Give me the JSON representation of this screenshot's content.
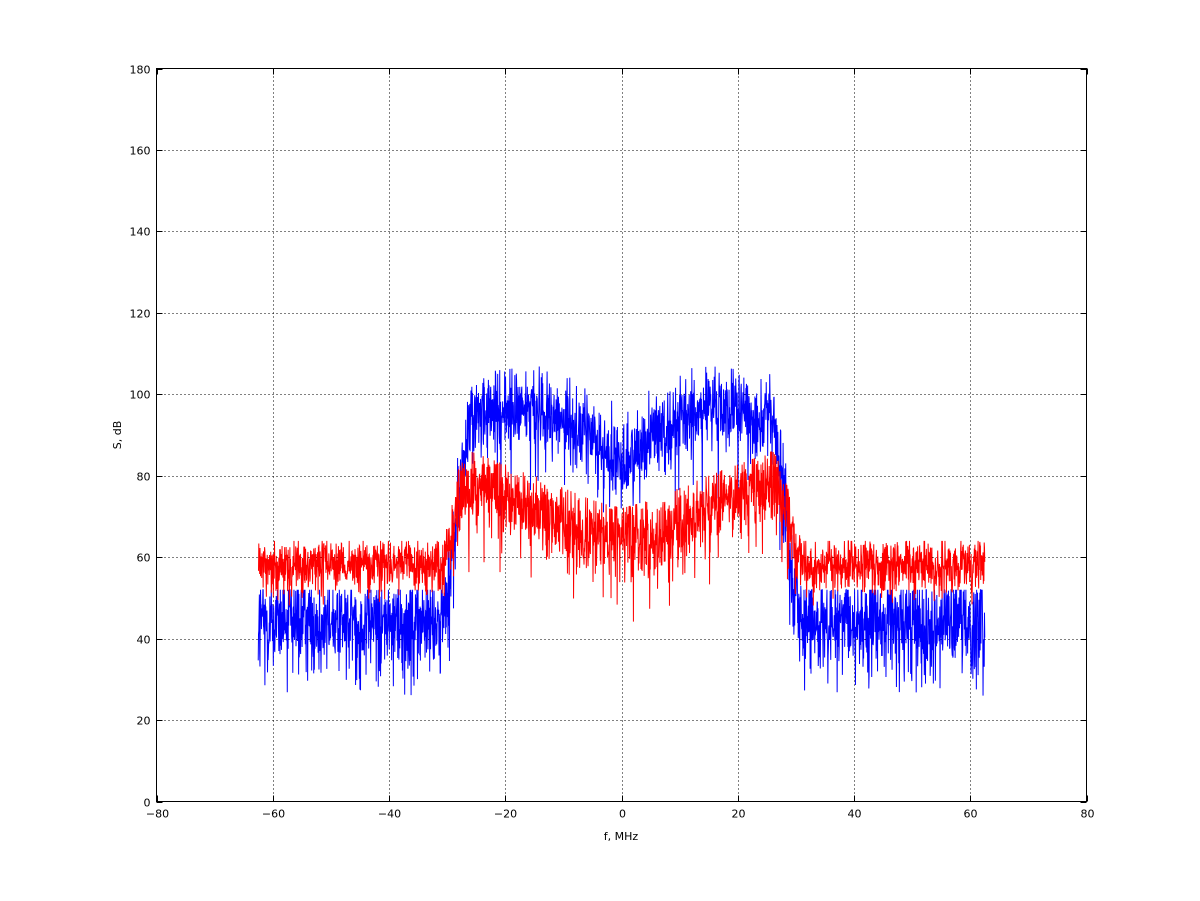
{
  "chart_data": {
    "type": "line",
    "title": "",
    "xlabel": "f, MHz",
    "ylabel": "S, dB",
    "xlim": [
      -80,
      80
    ],
    "ylim": [
      0,
      180
    ],
    "xticks": [
      -80,
      -60,
      -40,
      -20,
      0,
      20,
      40,
      60,
      80
    ],
    "yticks": [
      0,
      20,
      40,
      60,
      80,
      100,
      120,
      140,
      160,
      180
    ],
    "grid": true,
    "grid_style": "dotted",
    "sampling": {
      "x_start": -62.5,
      "x_step": 0.05,
      "count": 2501
    },
    "series": [
      {
        "color": "#0000ff",
        "envelope": {
          "x": [
            -62.5,
            -60,
            -31,
            -29.5,
            -28,
            -26,
            -15,
            -5,
            0,
            5,
            15,
            26,
            28,
            29.5,
            31,
            60,
            62.5
          ],
          "mean": [
            44,
            44,
            44,
            55,
            75,
            94,
            97,
            90,
            82,
            90,
            97,
            94,
            75,
            55,
            44,
            44,
            44
          ],
          "noise": [
            7,
            6,
            6,
            6,
            6,
            5,
            5,
            5,
            5,
            5,
            5,
            5,
            6,
            6,
            6,
            6,
            7
          ],
          "min": [
            26,
            26,
            26,
            35,
            55,
            70,
            70,
            70,
            72,
            70,
            70,
            70,
            55,
            35,
            26,
            26,
            26
          ],
          "max": [
            52,
            52,
            52,
            70,
            90,
            105,
            107,
            105,
            95,
            105,
            107,
            105,
            90,
            70,
            52,
            52,
            52
          ]
        }
      },
      {
        "color": "#ff0000",
        "envelope": {
          "x": [
            -62.5,
            -60,
            -31,
            -29.5,
            -28,
            -26,
            -15,
            -5,
            0,
            5,
            15,
            26,
            28,
            29.5,
            31,
            60,
            62.5
          ],
          "mean": [
            58,
            58,
            58,
            64,
            74,
            78,
            72,
            64,
            66,
            64,
            72,
            78,
            74,
            64,
            58,
            58,
            58
          ],
          "noise": [
            3,
            3,
            3,
            4,
            5,
            5,
            5,
            5,
            5,
            5,
            5,
            5,
            5,
            4,
            3,
            3,
            3
          ],
          "min": [
            48,
            48,
            48,
            50,
            55,
            55,
            50,
            45,
            42,
            45,
            50,
            55,
            55,
            50,
            48,
            48,
            48
          ],
          "max": [
            64,
            64,
            64,
            70,
            82,
            86,
            80,
            74,
            72,
            74,
            80,
            86,
            82,
            70,
            64,
            64,
            64
          ]
        }
      }
    ]
  }
}
